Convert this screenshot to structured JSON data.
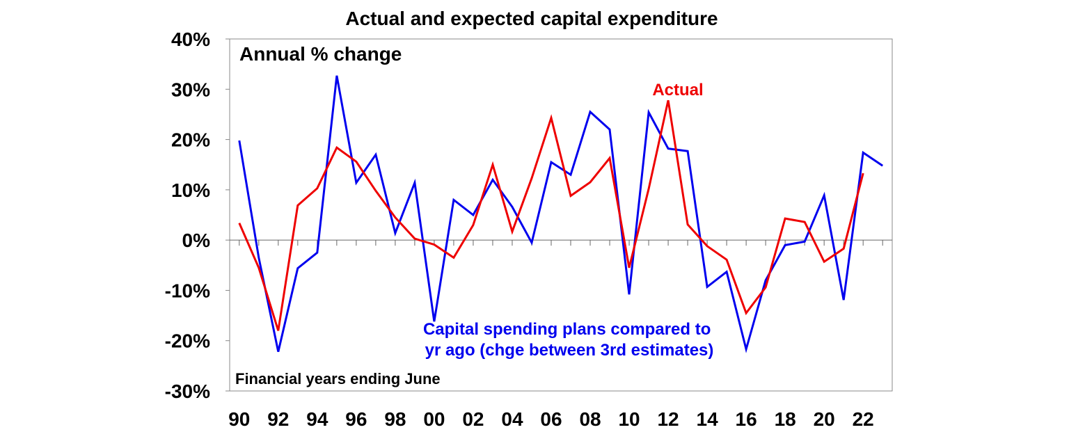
{
  "chart_data": {
    "type": "line",
    "title": "Actual and expected capital expenditure",
    "subtitle": "Annual % change",
    "footnote": "Financial years ending June",
    "x": [
      1990,
      1991,
      1992,
      1993,
      1994,
      1995,
      1996,
      1997,
      1998,
      1999,
      2000,
      2001,
      2002,
      2003,
      2004,
      2005,
      2006,
      2007,
      2008,
      2009,
      2010,
      2011,
      2012,
      2013,
      2014,
      2015,
      2016,
      2017,
      2018,
      2019,
      2020,
      2021,
      2022,
      2023
    ],
    "x_tick_labels": [
      "90",
      "92",
      "94",
      "96",
      "98",
      "00",
      "02",
      "04",
      "06",
      "08",
      "10",
      "12",
      "14",
      "16",
      "18",
      "20",
      "22"
    ],
    "x_tick_years": [
      1990,
      1992,
      1994,
      1996,
      1998,
      2000,
      2002,
      2004,
      2006,
      2008,
      2010,
      2012,
      2014,
      2016,
      2018,
      2020,
      2022
    ],
    "ylim": [
      -30,
      40
    ],
    "y_ticks": [
      -30,
      -20,
      -10,
      0,
      10,
      20,
      30,
      40
    ],
    "y_tick_labels": [
      "-30%",
      "-20%",
      "-10%",
      "0%",
      "10%",
      "20%",
      "30%",
      "40%"
    ],
    "grid": false,
    "series": [
      {
        "name": "Capital spending plans compared to yr ago (chge between 3rd estimates)",
        "label_lines": [
          "Capital spending plans compared to",
          "yr ago (chge between 3rd estimates)"
        ],
        "color": "#0000ee",
        "values": [
          19.8,
          -3.5,
          -22.2,
          -5.6,
          -2.5,
          32.7,
          11.4,
          17.0,
          1.4,
          11.4,
          -16.2,
          8.0,
          5.0,
          12.0,
          6.6,
          -0.5,
          15.5,
          13.0,
          25.5,
          22.0,
          -10.8,
          25.4,
          18.2,
          17.7,
          -9.3,
          -6.3,
          -21.7,
          -8.0,
          -1.0,
          -0.3,
          8.9,
          -11.9,
          17.4,
          14.8
        ]
      },
      {
        "name": "Actual",
        "label_lines": [
          "Actual"
        ],
        "color": "#ee0000",
        "values": [
          3.4,
          -5.5,
          -18.0,
          6.9,
          10.3,
          18.4,
          15.6,
          9.8,
          4.5,
          0.3,
          -0.9,
          -3.5,
          3.0,
          15.0,
          1.7,
          12.3,
          24.3,
          8.8,
          11.5,
          16.3,
          -5.5,
          10.2,
          27.8,
          3.1,
          -1.2,
          -3.9,
          -14.5,
          -9.4,
          4.3,
          3.6,
          -4.3,
          -1.7,
          13.3,
          null
        ]
      }
    ]
  }
}
